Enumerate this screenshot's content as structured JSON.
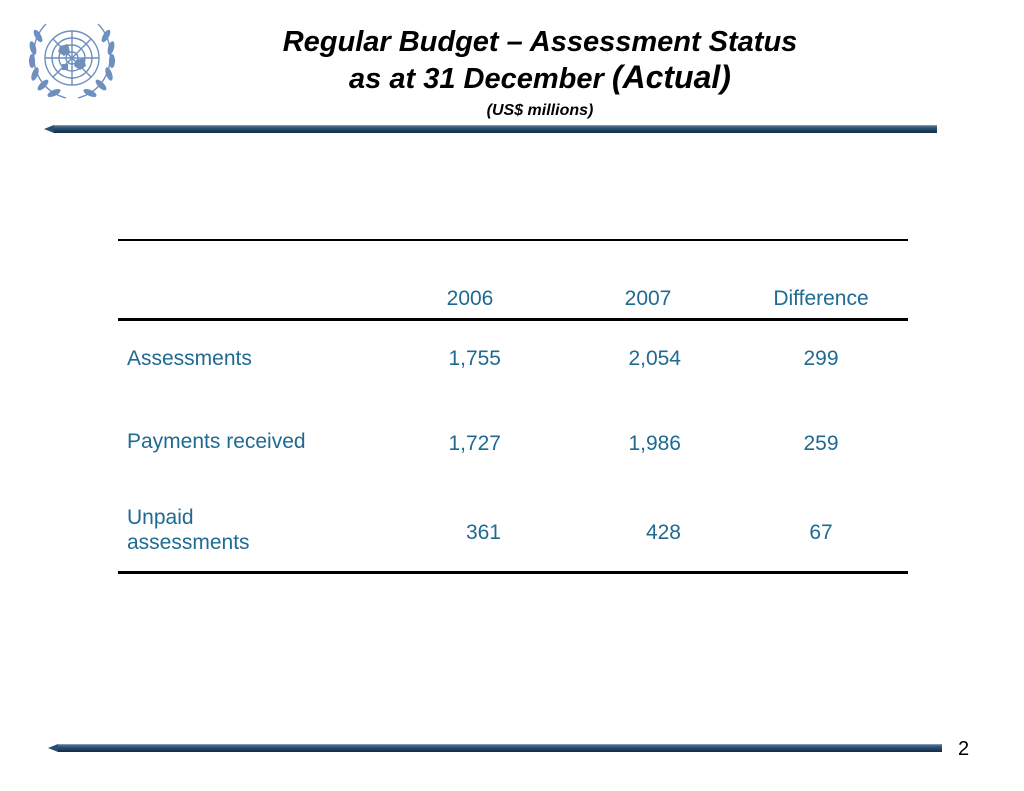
{
  "header": {
    "title_line1": "Regular Budget – Assessment Status",
    "title_line2_a": "as at 31 December ",
    "title_line2_b": "(Actual)",
    "subtitle": "(US$ millions)",
    "logo": "un-emblem-icon"
  },
  "table": {
    "columns": [
      "",
      "2006",
      "2007",
      "Difference"
    ],
    "rows": [
      {
        "label_line1": "Assessments",
        "label_line2": "",
        "values": [
          "1,755",
          "2,054",
          "299"
        ]
      },
      {
        "label_line1": "Payments received",
        "label_line2": "",
        "values": [
          "1,727",
          "1,986",
          "259"
        ]
      },
      {
        "label_line1": "Unpaid",
        "label_line2": "assessments",
        "values": [
          "361",
          "428",
          "67"
        ]
      }
    ]
  },
  "footer": {
    "page_number": "2"
  },
  "colors": {
    "text_blue": "#1f6a92",
    "bar_dark": "#0f2c4a",
    "emblem": "#6f8fbf"
  }
}
